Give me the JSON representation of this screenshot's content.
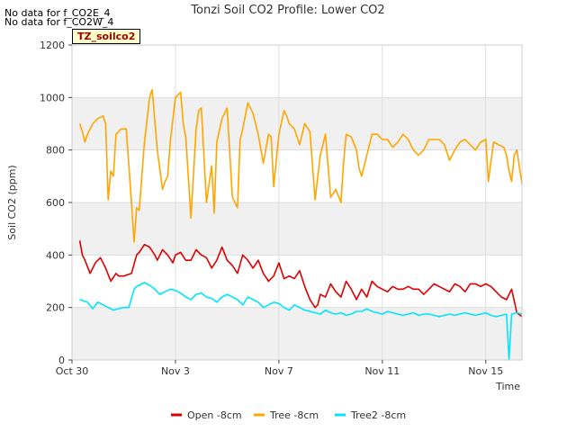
{
  "notes": [
    "No data for f_CO2E_4",
    "No data for f_CO2W_4"
  ],
  "badge": "TZ_soilco2",
  "colors": {
    "open": "#dd0000",
    "tree": "#ffa500",
    "tree2": "#00e5ff",
    "band": "#f0f0f0",
    "grid": "#dddddd"
  },
  "chart_data": {
    "type": "line",
    "title": "Tonzi Soil CO2 Profile: Lower CO2",
    "xlabel": "Time",
    "ylabel": "Soil CO2 (ppm)",
    "ylim": [
      0,
      1200
    ],
    "yticks": [
      0,
      200,
      400,
      600,
      800,
      1000,
      1200
    ],
    "xlim": [
      0,
      17.4
    ],
    "xticks": [
      {
        "value": 0,
        "label": "Oct 30"
      },
      {
        "value": 4,
        "label": "Nov 3"
      },
      {
        "value": 8,
        "label": "Nov 7"
      },
      {
        "value": 12,
        "label": "Nov 11"
      },
      {
        "value": 16,
        "label": "Nov 15"
      }
    ],
    "grid": true,
    "legend_position": "bottom",
    "series": [
      {
        "name": "Open -8cm",
        "color": "#dd0000",
        "x": [
          0.3,
          0.4,
          0.5,
          0.7,
          0.9,
          1.1,
          1.3,
          1.5,
          1.7,
          1.8,
          2.0,
          2.3,
          2.5,
          2.6,
          2.8,
          3.0,
          3.2,
          3.3,
          3.5,
          3.7,
          3.9,
          4.0,
          4.2,
          4.4,
          4.6,
          4.8,
          5.0,
          5.2,
          5.4,
          5.6,
          5.8,
          6.0,
          6.2,
          6.4,
          6.6,
          6.8,
          7.0,
          7.2,
          7.4,
          7.6,
          7.8,
          8.0,
          8.2,
          8.4,
          8.6,
          8.8,
          9.0,
          9.2,
          9.4,
          9.5,
          9.6,
          9.8,
          10.0,
          10.2,
          10.4,
          10.6,
          10.8,
          11.0,
          11.2,
          11.4,
          11.6,
          11.8,
          12.0,
          12.2,
          12.4,
          12.6,
          12.8,
          13.0,
          13.2,
          13.4,
          13.6,
          13.8,
          14.0,
          14.2,
          14.4,
          14.6,
          14.8,
          15.0,
          15.2,
          15.4,
          15.6,
          15.8,
          16.0,
          16.2,
          16.4,
          16.6,
          16.8,
          17.0,
          17.2,
          17.4
        ],
        "values": [
          455,
          400,
          380,
          330,
          370,
          390,
          350,
          300,
          330,
          320,
          320,
          330,
          400,
          410,
          440,
          430,
          400,
          380,
          420,
          400,
          370,
          400,
          410,
          380,
          380,
          420,
          400,
          390,
          350,
          380,
          430,
          380,
          360,
          330,
          400,
          380,
          350,
          380,
          330,
          300,
          320,
          370,
          310,
          320,
          310,
          340,
          280,
          230,
          200,
          210,
          250,
          240,
          290,
          260,
          240,
          300,
          270,
          230,
          270,
          240,
          300,
          280,
          270,
          260,
          280,
          270,
          270,
          280,
          270,
          270,
          250,
          270,
          290,
          280,
          270,
          260,
          290,
          280,
          260,
          290,
          290,
          280,
          290,
          280,
          260,
          240,
          230,
          270,
          180,
          165
        ]
      },
      {
        "name": "Tree -8cm",
        "color": "#ffa500",
        "x": [
          0.3,
          0.4,
          0.5,
          0.6,
          0.8,
          1.0,
          1.2,
          1.3,
          1.4,
          1.5,
          1.6,
          1.7,
          1.9,
          2.1,
          2.3,
          2.4,
          2.5,
          2.6,
          2.8,
          3.0,
          3.1,
          3.3,
          3.5,
          3.6,
          3.7,
          3.8,
          4.0,
          4.2,
          4.3,
          4.4,
          4.6,
          4.8,
          4.9,
          5.0,
          5.2,
          5.4,
          5.5,
          5.6,
          5.8,
          6.0,
          6.2,
          6.4,
          6.5,
          6.6,
          6.8,
          7.0,
          7.2,
          7.4,
          7.6,
          7.7,
          7.8,
          8.0,
          8.2,
          8.3,
          8.4,
          8.6,
          8.8,
          9.0,
          9.2,
          9.4,
          9.6,
          9.8,
          10.0,
          10.2,
          10.4,
          10.5,
          10.6,
          10.8,
          11.0,
          11.1,
          11.2,
          11.4,
          11.6,
          11.8,
          12.0,
          12.2,
          12.4,
          12.6,
          12.8,
          13.0,
          13.2,
          13.4,
          13.6,
          13.8,
          14.0,
          14.2,
          14.4,
          14.6,
          14.8,
          15.0,
          15.2,
          15.4,
          15.6,
          15.8,
          16.0,
          16.1,
          16.3,
          16.5,
          16.7,
          16.8,
          16.9,
          17.0,
          17.1,
          17.2,
          17.4
        ],
        "values": [
          900,
          870,
          830,
          860,
          900,
          920,
          930,
          900,
          610,
          720,
          700,
          860,
          880,
          880,
          600,
          450,
          580,
          570,
          830,
          1000,
          1030,
          800,
          650,
          680,
          700,
          830,
          1000,
          1020,
          900,
          850,
          540,
          880,
          950,
          960,
          600,
          740,
          560,
          830,
          920,
          960,
          620,
          580,
          840,
          880,
          980,
          940,
          860,
          750,
          860,
          850,
          660,
          860,
          950,
          930,
          900,
          880,
          820,
          900,
          870,
          610,
          780,
          860,
          620,
          650,
          600,
          750,
          860,
          850,
          800,
          730,
          700,
          780,
          860,
          860,
          840,
          840,
          810,
          830,
          860,
          840,
          800,
          780,
          800,
          840,
          840,
          840,
          820,
          760,
          800,
          830,
          840,
          820,
          800,
          830,
          840,
          680,
          830,
          820,
          810,
          780,
          720,
          680,
          780,
          800,
          670
        ]
      },
      {
        "name": "Tree2 -8cm",
        "color": "#00e5ff",
        "x": [
          0.3,
          0.6,
          0.8,
          1.0,
          1.2,
          1.4,
          1.6,
          1.8,
          2.0,
          2.2,
          2.4,
          2.5,
          2.6,
          2.8,
          3.0,
          3.2,
          3.4,
          3.6,
          3.8,
          4.0,
          4.2,
          4.4,
          4.6,
          4.8,
          5.0,
          5.2,
          5.4,
          5.6,
          5.8,
          6.0,
          6.2,
          6.4,
          6.6,
          6.8,
          7.0,
          7.2,
          7.4,
          7.6,
          7.8,
          8.0,
          8.2,
          8.4,
          8.6,
          8.8,
          9.0,
          9.2,
          9.4,
          9.6,
          9.8,
          10.0,
          10.2,
          10.4,
          10.6,
          10.8,
          11.0,
          11.2,
          11.4,
          11.6,
          11.8,
          12.0,
          12.2,
          12.4,
          12.6,
          12.8,
          13.0,
          13.2,
          13.4,
          13.6,
          13.8,
          14.0,
          14.2,
          14.4,
          14.6,
          14.8,
          15.0,
          15.2,
          15.4,
          15.6,
          15.8,
          16.0,
          16.2,
          16.4,
          16.6,
          16.8,
          16.9,
          17.0,
          17.2,
          17.4
        ],
        "values": [
          230,
          220,
          195,
          220,
          210,
          200,
          190,
          195,
          200,
          200,
          270,
          280,
          285,
          295,
          285,
          270,
          250,
          260,
          270,
          265,
          255,
          240,
          230,
          250,
          255,
          240,
          235,
          220,
          240,
          250,
          240,
          230,
          210,
          240,
          230,
          220,
          200,
          210,
          220,
          215,
          200,
          190,
          210,
          200,
          190,
          185,
          180,
          175,
          190,
          180,
          175,
          180,
          170,
          175,
          185,
          185,
          195,
          185,
          180,
          175,
          185,
          180,
          175,
          170,
          175,
          180,
          170,
          175,
          175,
          170,
          165,
          170,
          175,
          170,
          175,
          180,
          175,
          170,
          175,
          180,
          170,
          165,
          170,
          175,
          0,
          175,
          180,
          175
        ]
      }
    ]
  }
}
